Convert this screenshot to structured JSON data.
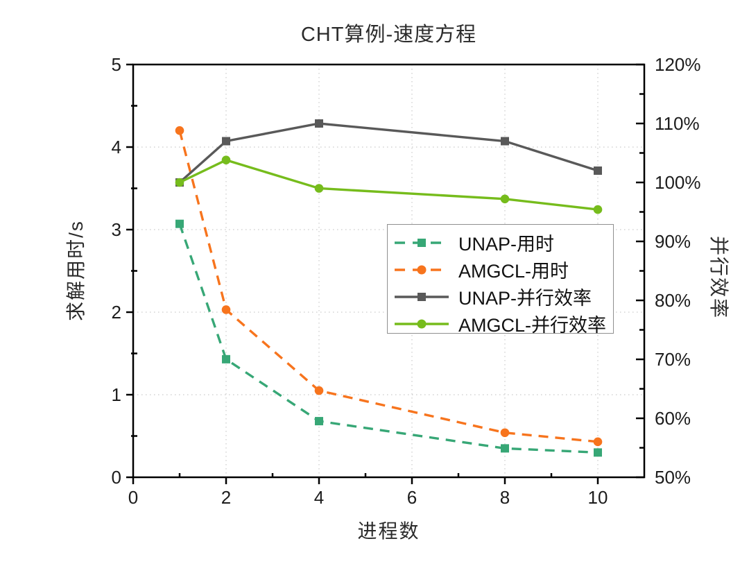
{
  "chart_data": {
    "type": "line",
    "title": "CHT算例-速度方程",
    "xlabel": "进程数",
    "ylabel_left": "求解用时/s",
    "ylabel_right": "并行效率",
    "x": [
      1,
      2,
      4,
      8,
      10
    ],
    "xlim": [
      0,
      11
    ],
    "ylim_left": [
      0,
      5
    ],
    "ylim_right": [
      50,
      120
    ],
    "xticks": {
      "values": [
        0,
        2,
        4,
        6,
        8,
        10
      ],
      "labels": [
        "0",
        "2",
        "4",
        "6",
        "8",
        "10"
      ],
      "minor": [
        1,
        3,
        5,
        7,
        9
      ]
    },
    "yticks_left": {
      "values": [
        0,
        1,
        2,
        3,
        4,
        5
      ],
      "labels": [
        "0",
        "1",
        "2",
        "3",
        "4",
        "5"
      ],
      "minor": [
        0.5,
        1.5,
        2.5,
        3.5,
        4.5
      ]
    },
    "yticks_right": {
      "values": [
        50,
        60,
        70,
        80,
        90,
        100,
        110,
        120
      ],
      "labels": [
        "50%",
        "60%",
        "70%",
        "80%",
        "90%",
        "100%",
        "110%",
        "120%"
      ],
      "minor": [
        55,
        65,
        75,
        85,
        95,
        105,
        115
      ]
    },
    "grid": "dotted",
    "legend_position": "center-right",
    "series": [
      {
        "name": "UNAP-用时",
        "axis": "left",
        "values": [
          3.07,
          1.43,
          0.68,
          0.35,
          0.3
        ],
        "color": "#37a776",
        "line": "dashed",
        "marker": "square"
      },
      {
        "name": "AMGCL-用时",
        "axis": "left",
        "values": [
          4.2,
          2.03,
          1.05,
          0.54,
          0.43
        ],
        "color": "#f7741d",
        "line": "dashed",
        "marker": "circle"
      },
      {
        "name": "UNAP-并行效率",
        "axis": "right",
        "values": [
          100,
          107,
          110,
          107,
          102
        ],
        "color": "#595959",
        "line": "solid",
        "marker": "square"
      },
      {
        "name": "AMGCL-并行效率",
        "axis": "right",
        "values": [
          100,
          103.8,
          99,
          97.2,
          95.4
        ],
        "color": "#76bc1c",
        "line": "solid",
        "marker": "circle"
      }
    ],
    "styles": {
      "grid_color": "#c9c9c9",
      "axis_color": "#000000",
      "tick_label_color": "#1c1c1c"
    }
  }
}
